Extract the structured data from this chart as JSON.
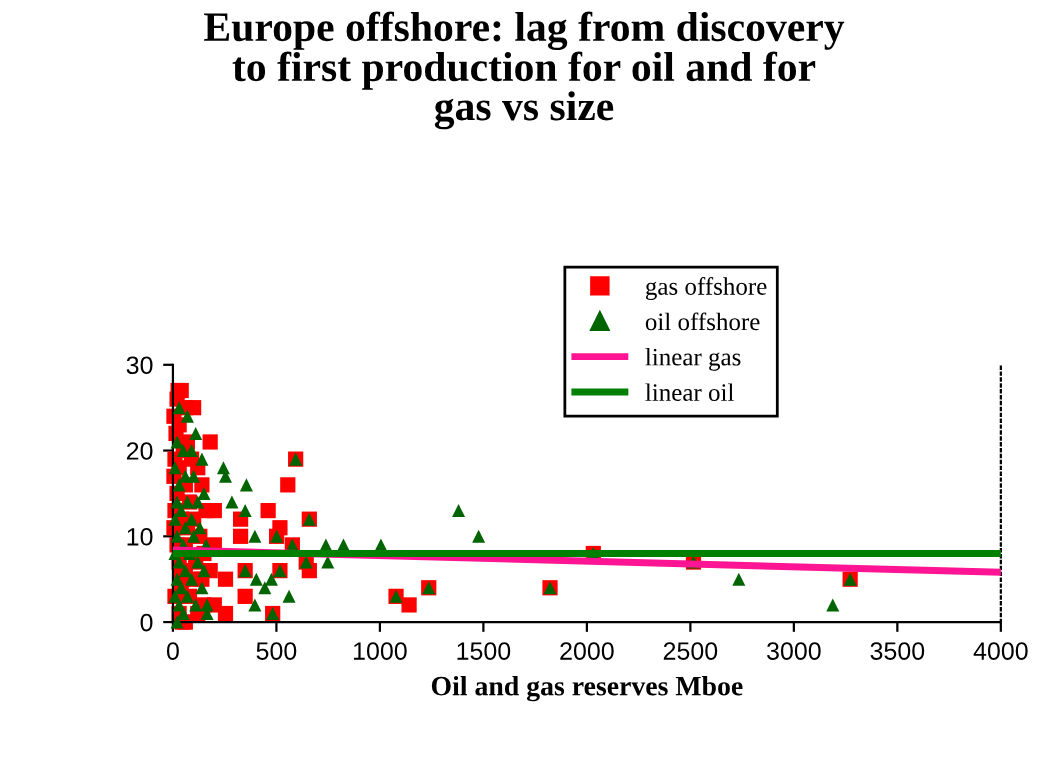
{
  "chart_data": {
    "type": "scatter",
    "title": "Europe offshore: lag from discovery\nto first production for oil and for\ngas vs size",
    "xlabel": "Oil and gas reserves Mboe",
    "xlim": [
      0,
      4000
    ],
    "xticks": [
      0,
      500,
      1000,
      1500,
      2000,
      2500,
      3000,
      3500,
      4000
    ],
    "ylim": [
      0,
      30
    ],
    "yticks": [
      0,
      10,
      20,
      30
    ],
    "grid": false,
    "legend": "top right",
    "series": [
      {
        "name": "gas offshore",
        "marker": "square",
        "color": "#ff0000",
        "x": [
          25,
          40,
          20,
          60,
          100,
          5,
          30,
          15,
          70,
          180,
          50,
          10,
          90,
          30,
          120,
          5,
          60,
          140,
          20,
          80,
          10,
          160,
          200,
          40,
          100,
          5,
          70,
          130,
          20,
          60,
          200,
          150,
          30,
          110,
          35,
          60,
          180,
          50,
          100,
          140,
          40,
          10,
          80,
          150,
          200,
          30,
          120,
          45,
          60,
          593,
          555,
          460,
          327,
          659,
          517,
          327,
          501,
          577,
          644,
          659,
          349,
          517,
          254,
          349,
          1078,
          1141,
          482,
          254,
          1236,
          2031,
          2515,
          1822,
          3272
        ],
        "values": [
          27,
          27,
          26,
          25,
          25,
          24,
          23,
          22,
          21,
          21,
          20,
          19,
          19,
          18,
          18,
          17,
          16,
          16,
          15,
          14,
          13,
          13,
          13,
          12,
          12,
          11,
          11,
          10,
          9,
          9,
          9,
          8,
          7,
          7,
          6,
          6,
          6,
          5,
          5,
          5,
          4,
          3,
          3,
          2,
          2,
          1,
          1,
          0,
          0,
          19,
          16,
          13,
          12,
          12,
          11,
          10,
          10,
          9,
          7,
          6,
          6,
          6,
          5,
          3,
          3,
          2,
          1,
          1,
          4,
          8,
          7,
          4,
          5
        ]
      },
      {
        "name": "oil offshore",
        "marker": "triangle",
        "color": "#006400",
        "x": [
          30,
          70,
          110,
          20,
          50,
          90,
          140,
          10,
          60,
          100,
          30,
          150,
          20,
          70,
          120,
          40,
          90,
          10,
          60,
          130,
          20,
          100,
          50,
          160,
          10,
          80,
          30,
          120,
          60,
          150,
          20,
          90,
          40,
          140,
          10,
          70,
          30,
          110,
          50,
          20,
          593,
          244,
          254,
          355,
          285,
          349,
          659,
          396,
          501,
          577,
          739,
          824,
          1005,
          644,
          748,
          349,
          517,
          403,
          476,
          444,
          561,
          1078,
          396,
          482,
          165,
          165,
          1236,
          1380,
          1477,
          2031,
          2515,
          1822,
          2734,
          3272,
          3188
        ],
        "values": [
          25,
          24,
          22,
          21,
          20,
          20,
          19,
          18,
          17,
          17,
          16,
          15,
          14,
          14,
          14,
          13,
          12,
          12,
          11,
          11,
          10,
          10,
          9,
          9,
          8,
          8,
          7,
          7,
          6,
          6,
          5,
          5,
          4,
          4,
          3,
          3,
          2,
          2,
          1,
          0,
          19,
          18,
          17,
          16,
          14,
          13,
          12,
          10,
          10,
          9,
          9,
          9,
          9,
          7,
          7,
          6,
          6,
          5,
          5,
          4,
          3,
          3,
          2,
          1,
          2,
          1,
          4,
          13,
          10,
          8,
          7,
          4,
          5,
          5,
          2
        ]
      },
      {
        "name": "linear gas",
        "type": "line",
        "color": "#ff1493",
        "x": [
          0,
          4000
        ],
        "values": [
          8.4,
          5.8
        ]
      },
      {
        "name": "linear oil",
        "type": "line",
        "color": "#008000",
        "x": [
          0,
          4000
        ],
        "values": [
          8,
          8
        ]
      }
    ]
  }
}
